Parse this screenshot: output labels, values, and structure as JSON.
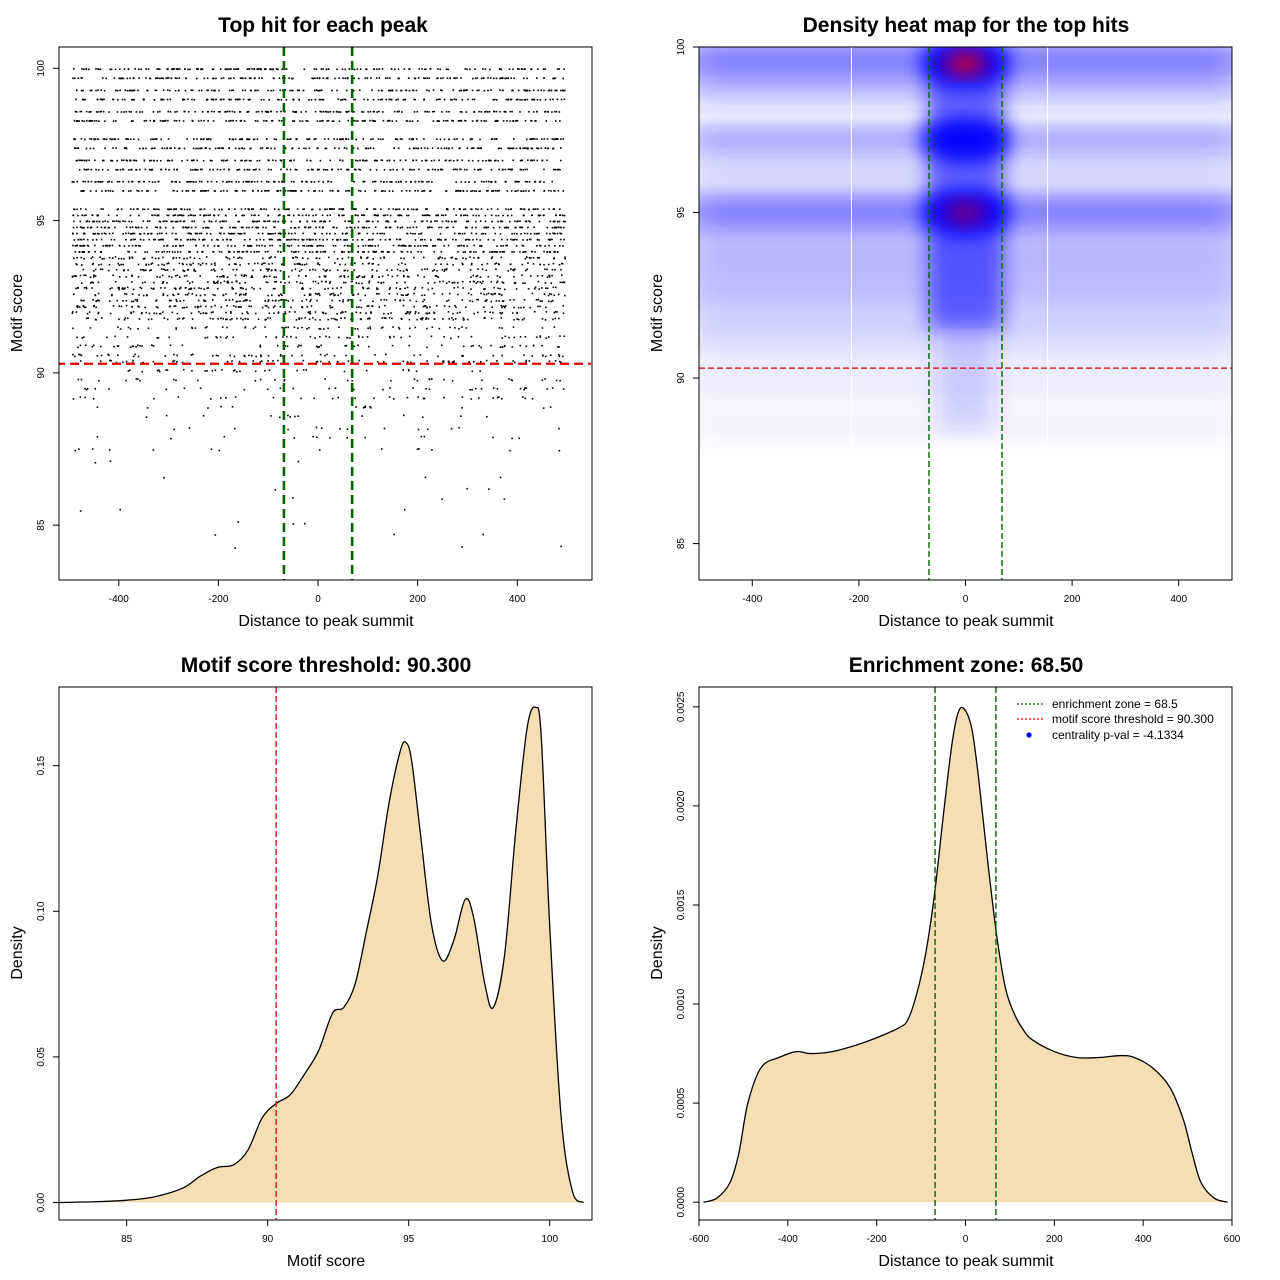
{
  "chart_data": [
    {
      "type": "scatter",
      "title": "Top hit for each peak",
      "xlabel": "Distance to peak summit",
      "ylabel": "Motif score",
      "xlim": [
        -520,
        550
      ],
      "ylim": [
        83.2,
        100.7
      ],
      "xticks": [
        -400,
        -200,
        0,
        200,
        400
      ],
      "yticks": [
        85,
        90,
        95,
        100
      ],
      "vlines": [
        -68.5,
        68.5
      ],
      "hline": 90.3,
      "score_levels": [
        100,
        99.7,
        99.3,
        99.0,
        98.6,
        98.3,
        97.7,
        97.4,
        97.0,
        96.7,
        96.3,
        96.0,
        95.4,
        95.2,
        95.0,
        94.8,
        94.6,
        94.4,
        94.2,
        94.0,
        93.8,
        93.6,
        93.4,
        93.2,
        93.0,
        92.8,
        92.6,
        92.4,
        92.2,
        92.0,
        91.8,
        91.5,
        91.2,
        90.9,
        90.6,
        90.4,
        90.1,
        89.8,
        89.5,
        89.2,
        88.9,
        88.6,
        88.2,
        87.9,
        87.5,
        87.1,
        86.6,
        86.2,
        85.9,
        85.5,
        85.1,
        84.7,
        84.3
      ]
    },
    {
      "type": "heatmap",
      "title": "Density heat map for the top hits",
      "xlabel": "Distance to peak summit",
      "ylabel": "Motif score",
      "xlim": [
        -500,
        500
      ],
      "ylim": [
        83.9,
        100.0
      ],
      "xticks": [
        -400,
        -200,
        0,
        200,
        400
      ],
      "yticks": [
        85,
        90,
        95,
        100
      ],
      "vlines": [
        -68.5,
        68.5
      ],
      "white_lines": [
        -214,
        154
      ],
      "hline": 90.3,
      "hotspots": [
        {
          "x": 0,
          "y": 99.5,
          "level": "max"
        },
        {
          "x": 0,
          "y": 95.0,
          "level": "high"
        },
        {
          "x": 0,
          "y": 97.2,
          "level": "medium"
        }
      ]
    },
    {
      "type": "area",
      "title": "Motif score threshold: 90.300",
      "xlabel": "Motif score",
      "ylabel": "Density",
      "xlim": [
        82.6,
        101.5
      ],
      "ylim": [
        -0.006,
        0.177
      ],
      "xticks": [
        85,
        90,
        95,
        100
      ],
      "yticks": [
        0.0,
        0.05,
        0.1,
        0.15
      ],
      "ytick_labels": [
        "0.00",
        "0.05",
        "0.10",
        "0.15"
      ],
      "vline": 90.3,
      "x": [
        82.6,
        84,
        85,
        86,
        87,
        87.6,
        88.2,
        88.8,
        89.3,
        89.8,
        90.3,
        90.8,
        91.3,
        91.8,
        92.3,
        92.7,
        93.1,
        93.5,
        93.9,
        94.3,
        94.7,
        94.9,
        95.1,
        95.4,
        95.8,
        96.2,
        96.6,
        97.0,
        97.3,
        97.7,
        98.0,
        98.4,
        98.8,
        99.2,
        99.5,
        99.7,
        100.0,
        100.4,
        100.8,
        101.2
      ],
      "values": [
        0.0,
        0.0003,
        0.0008,
        0.002,
        0.005,
        0.009,
        0.012,
        0.013,
        0.018,
        0.029,
        0.034,
        0.037,
        0.044,
        0.052,
        0.065,
        0.067,
        0.075,
        0.093,
        0.112,
        0.137,
        0.155,
        0.158,
        0.152,
        0.128,
        0.096,
        0.083,
        0.09,
        0.104,
        0.098,
        0.075,
        0.067,
        0.085,
        0.128,
        0.163,
        0.17,
        0.16,
        0.095,
        0.03,
        0.004,
        0.0
      ]
    },
    {
      "type": "area",
      "title": "Enrichment zone: 68.50",
      "xlabel": "Distance to peak summit",
      "ylabel": "Density",
      "xlim": [
        -600,
        600
      ],
      "ylim": [
        -9e-05,
        0.0026
      ],
      "xticks": [
        -600,
        -400,
        -200,
        0,
        200,
        400,
        600
      ],
      "yticks": [
        0.0,
        0.0005,
        0.001,
        0.0015,
        0.002,
        0.0025
      ],
      "ytick_labels": [
        "0.0000",
        "0.0005",
        "0.0010",
        "0.0015",
        "0.0020",
        "0.0025"
      ],
      "vlines": [
        -68.5,
        68.5
      ],
      "x": [
        -590,
        -560,
        -530,
        -510,
        -490,
        -460,
        -420,
        -380,
        -350,
        -300,
        -250,
        -200,
        -150,
        -130,
        -110,
        -90,
        -70,
        -50,
        -30,
        -15,
        0,
        15,
        30,
        50,
        70,
        90,
        110,
        130,
        150,
        200,
        250,
        300,
        350,
        380,
        420,
        460,
        490,
        510,
        530,
        560,
        590
      ],
      "values": [
        0.0,
        2e-05,
        0.0001,
        0.00025,
        0.0005,
        0.00068,
        0.00073,
        0.00076,
        0.00075,
        0.00076,
        0.00079,
        0.00083,
        0.00088,
        0.00092,
        0.00105,
        0.00125,
        0.00155,
        0.00195,
        0.00232,
        0.00248,
        0.00248,
        0.00238,
        0.00213,
        0.00172,
        0.00135,
        0.00108,
        0.00095,
        0.00087,
        0.00082,
        0.00076,
        0.00073,
        0.00073,
        0.00074,
        0.00073,
        0.00068,
        0.00058,
        0.00042,
        0.00025,
        0.0001,
        2e-05,
        0.0
      ],
      "legend": [
        {
          "label": "enrichment zone = 68.5",
          "color": "#006400",
          "style": "dotted"
        },
        {
          "label": "motif score threshold = 90.300",
          "color": "#ff0000",
          "style": "dotted"
        },
        {
          "label": "centrality p-val = -4.1334",
          "color": "#0000ff",
          "style": "point"
        }
      ]
    }
  ]
}
